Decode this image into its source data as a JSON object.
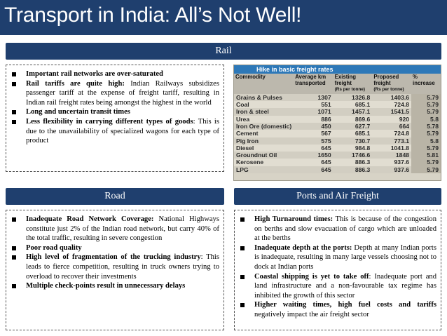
{
  "title": "Transport in India: All’s Not Well!",
  "rail": {
    "header": "Rail",
    "bullets": [
      {
        "bold": "Important rail networks are over-saturated",
        "text": ""
      },
      {
        "bold": "Rail tariffs are quite high:",
        "text": " Indian Railways subsidizes passenger tariff at the expense of freight tariff, resulting in Indian rail freight rates being amongst the highest in the world"
      },
      {
        "bold": "Long and uncertain transit times",
        "text": ""
      },
      {
        "bold": "Less flexibility in carrying different types of goods",
        "text": ": This is due to the unavailability of specialized wagons for each type of product"
      }
    ]
  },
  "freight_table": {
    "title": "Hike in basic freight rates",
    "headers": {
      "commodity": "Commodity",
      "average_line1": "Average km",
      "average_line2": "transported",
      "existing_line1": "Existing",
      "existing_line2": "freight",
      "existing_unit": "(Rs per tonne)",
      "proposed_line1": "Proposed",
      "proposed_line2": "freight",
      "proposed_unit": "(Rs per tonne)",
      "pct_line1": "%",
      "pct_line2": "increase"
    },
    "rows": [
      [
        "Grains & Pulses",
        "1307",
        "1326.8",
        "1403.6",
        "5.79"
      ],
      [
        "Coal",
        "551",
        "685.1",
        "724.8",
        "5.79"
      ],
      [
        "Iron & steel",
        "1071",
        "1457.1",
        "1541.5",
        "5.79"
      ],
      [
        "Urea",
        "886",
        "869.6",
        "920",
        "5.8"
      ],
      [
        "Iron Ore (domestic)",
        "450",
        "627.7",
        "664",
        "5.78"
      ],
      [
        "Cement",
        "567",
        "685.1",
        "724.8",
        "5.79"
      ],
      [
        "Pig Iron",
        "575",
        "730.7",
        "773.1",
        "5.8"
      ],
      [
        "Diesel",
        "645",
        "984.8",
        "1041.8",
        "5.79"
      ],
      [
        "Groundnut Oil",
        "1650",
        "1746.6",
        "1848",
        "5.81"
      ],
      [
        "Kerosene",
        "645",
        "886.3",
        "937.6",
        "5.79"
      ],
      [
        "LPG",
        "645",
        "886.3",
        "937.6",
        "5.79"
      ]
    ]
  },
  "road": {
    "header": "Road",
    "bullets": [
      {
        "bold": "Inadequate Road Network Coverage:",
        "text": " National Highways constitute just 2% of the Indian road network, but carry 40% of the total traffic, resulting in severe congestion"
      },
      {
        "bold": "Poor road quality",
        "text": ""
      },
      {
        "bold": "High level of fragmentation of the trucking industry",
        "text": ": This leads to fierce competition, resulting in truck owners trying to overload to recover their investments"
      },
      {
        "bold": "Multiple check-points result in unnecessary delays",
        "text": ""
      }
    ]
  },
  "ports": {
    "header": "Ports and Air Freight",
    "bullets": [
      {
        "bold": "High Turnaround times:",
        "text": " This is because of the congestion on berths and slow evacuation of cargo which are unloaded at the berths"
      },
      {
        "bold": "Inadequate depth at the ports:",
        "text": " Depth at many Indian ports is inadequate, resulting in many large vessels choosing not to dock at Indian ports"
      },
      {
        "bold": "Coastal shipping is yet to take off",
        "text": ": Inadequate port and land infrastructure and a non-favourable tax regime has inhibited the growth of this sector"
      },
      {
        "bold": "Higher waiting times, high fuel costs and tariffs",
        "text": " negatively impact the air freight sector"
      }
    ]
  },
  "colors": {
    "header_bg": "#1f3f6e",
    "table_title_bg": "#2d78b8"
  }
}
